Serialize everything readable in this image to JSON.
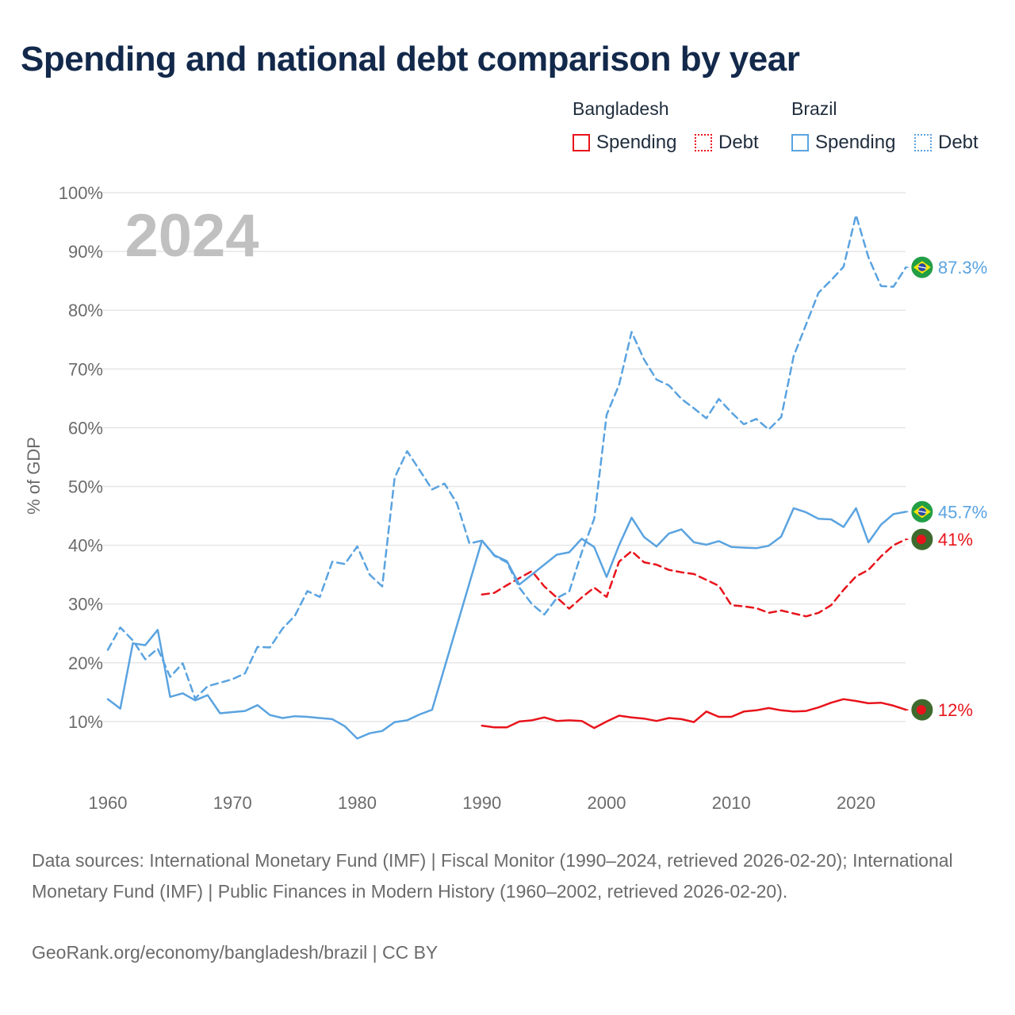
{
  "title": "Spending and national debt comparison by year",
  "year_label": "2024",
  "legend": {
    "groups": [
      {
        "name": "Bangladesh",
        "items": [
          {
            "label": "Spending",
            "color": "#e8141c",
            "style": "solid"
          },
          {
            "label": "Debt",
            "color": "#e8141c",
            "style": "dotted"
          }
        ]
      },
      {
        "name": "Brazil",
        "items": [
          {
            "label": "Spending",
            "color": "#5aa3e0",
            "style": "solid"
          },
          {
            "label": "Debt",
            "color": "#5aa3e0",
            "style": "dotted"
          }
        ]
      }
    ]
  },
  "end_labels": [
    {
      "text": "87.3%",
      "value": 87.3,
      "color": "#5aa3e0",
      "flag": "brazil-flag-icon"
    },
    {
      "text": "45.7%",
      "value": 45.7,
      "color": "#5aa3e0",
      "flag": "brazil-flag-icon"
    },
    {
      "text": "41%",
      "value": 41,
      "color": "#e8141c",
      "flag": "bangladesh-flag-icon"
    },
    {
      "text": "12%",
      "value": 12,
      "color": "#e8141c",
      "flag": "bangladesh-flag-icon"
    }
  ],
  "chart_data": {
    "type": "line",
    "title": "Spending and national debt comparison by year",
    "xlabel": "",
    "ylabel": "% of GDP",
    "xlim": [
      1960,
      2025.5
    ],
    "ylim": [
      0,
      100
    ],
    "x_ticks": [
      "1960",
      "1970",
      "1980",
      "1990",
      "2000",
      "2010",
      "2020"
    ],
    "x_tick_values": [
      1960,
      1970,
      1980,
      1990,
      2000,
      2010,
      2020
    ],
    "y_ticks": [
      "10%",
      "20%",
      "30%",
      "40%",
      "50%",
      "60%",
      "70%",
      "80%",
      "90%",
      "100%"
    ],
    "y_tick_values": [
      10,
      20,
      30,
      40,
      50,
      60,
      70,
      80,
      90,
      100
    ],
    "grid": true,
    "series": [
      {
        "name": "Bangladesh Spending",
        "color": "#e8141c",
        "dash": "solid",
        "x": [
          1990,
          1991,
          1992,
          1993,
          1994,
          1995,
          1996,
          1997,
          1998,
          1999,
          2000,
          2001,
          2002,
          2003,
          2004,
          2005,
          2006,
          2007,
          2008,
          2009,
          2010,
          2011,
          2012,
          2013,
          2014,
          2015,
          2016,
          2017,
          2018,
          2019,
          2020,
          2021,
          2022,
          2023,
          2024
        ],
        "values": [
          9.3,
          9,
          9,
          10,
          10.2,
          10.7,
          10.1,
          10.2,
          10.1,
          8.9,
          10,
          11,
          10.7,
          10.5,
          10.1,
          10.6,
          10.4,
          9.9,
          11.7,
          10.8,
          10.8,
          11.7,
          11.9,
          12.3,
          11.9,
          11.7,
          11.8,
          12.4,
          13.2,
          13.8,
          13.5,
          13.1,
          13.2,
          12.7,
          12
        ]
      },
      {
        "name": "Bangladesh Debt",
        "color": "#e8141c",
        "dash": "dashed",
        "x": [
          1990,
          1991,
          1992,
          1993,
          1994,
          1995,
          1996,
          1997,
          1998,
          1999,
          2000,
          2001,
          2002,
          2003,
          2004,
          2005,
          2006,
          2007,
          2008,
          2009,
          2010,
          2011,
          2012,
          2013,
          2014,
          2015,
          2016,
          2017,
          2018,
          2019,
          2020,
          2021,
          2022,
          2023,
          2024
        ],
        "values": [
          31.6,
          31.9,
          33.2,
          34.4,
          35.6,
          33,
          31.1,
          29.2,
          31.1,
          32.8,
          31.2,
          37.2,
          39,
          37.1,
          36.7,
          35.8,
          35.4,
          35.1,
          34.1,
          33.1,
          29.8,
          29.6,
          29.3,
          28.5,
          28.9,
          28.4,
          27.9,
          28.5,
          29.8,
          32.4,
          34.7,
          35.8,
          38.1,
          40,
          41
        ]
      },
      {
        "name": "Brazil Spending",
        "color": "#5aa3e0",
        "dash": "solid",
        "x": [
          1960,
          1961,
          1962,
          1963,
          1964,
          1965,
          1966,
          1967,
          1968,
          1969,
          1970,
          1971,
          1972,
          1973,
          1974,
          1975,
          1976,
          1977,
          1978,
          1979,
          1980,
          1981,
          1982,
          1983,
          1984,
          1985,
          1986,
          1987,
          1988,
          1989,
          1990,
          1991,
          1992,
          1993,
          1994,
          1995,
          1996,
          1997,
          1998,
          1999,
          2000,
          2001,
          2002,
          2003,
          2004,
          2005,
          2006,
          2007,
          2008,
          2009,
          2010,
          2011,
          2012,
          2013,
          2014,
          2015,
          2016,
          2017,
          2018,
          2019,
          2020,
          2021,
          2022,
          2023,
          2024
        ],
        "values": [
          13.8,
          12.2,
          23.3,
          23,
          25.6,
          14.2,
          14.8,
          13.6,
          14.5,
          11.4,
          11.6,
          11.8,
          12.8,
          11.1,
          10.6,
          10.9,
          10.8,
          10.6,
          10.4,
          9.2,
          7.1,
          8,
          8.4,
          9.9,
          10.2,
          11.2,
          12,
          null,
          null,
          null,
          40.8,
          38.3,
          37.3,
          33.3,
          null,
          null,
          38.4,
          38.8,
          41.1,
          39.7,
          34.6,
          40,
          44.7,
          41.4,
          39.8,
          42,
          42.7,
          40.5,
          40.1,
          40.7,
          39.7,
          39.6,
          39.5,
          39.9,
          41.5,
          46.3,
          45.6,
          44.5,
          44.4,
          43.1,
          46.3,
          40.5,
          43.5,
          45.3,
          45.7
        ]
      },
      {
        "name": "Brazil Debt",
        "color": "#5aa3e0",
        "dash": "dashed",
        "x": [
          1960,
          1961,
          1962,
          1963,
          1964,
          1965,
          1966,
          1967,
          1968,
          1969,
          1970,
          1971,
          1972,
          1973,
          1974,
          1975,
          1976,
          1977,
          1978,
          1979,
          1980,
          1981,
          1982,
          1983,
          1984,
          1985,
          1986,
          1987,
          1988,
          1989,
          1990,
          1991,
          1992,
          1993,
          1994,
          1995,
          1996,
          1997,
          1998,
          1999,
          2000,
          2001,
          2002,
          2003,
          2004,
          2005,
          2006,
          2007,
          2008,
          2009,
          2010,
          2011,
          2012,
          2013,
          2014,
          2015,
          2016,
          2017,
          2018,
          2019,
          2020,
          2021,
          2022,
          2023,
          2024
        ],
        "values": [
          22.2,
          26,
          23.8,
          20.6,
          22.4,
          17.6,
          19.9,
          13.9,
          16,
          16.6,
          17.2,
          18.2,
          22.7,
          22.6,
          25.8,
          28,
          32.2,
          31.2,
          37.2,
          36.8,
          39.8,
          35,
          33,
          51.5,
          56,
          52.8,
          49.5,
          50.5,
          47.1,
          40.3,
          40.8,
          38.2,
          37.1,
          32.8,
          30,
          28.2,
          31,
          32.1,
          38.8,
          44.5,
          62.2,
          67.3,
          76.3,
          71.6,
          68.2,
          67.2,
          64.9,
          63.3,
          61.6,
          64.9,
          62.6,
          60.6,
          61.5,
          59.7,
          61.8,
          72.2,
          77.6,
          83,
          85.1,
          87.4,
          96.2,
          89,
          84.1,
          84,
          87.3
        ]
      }
    ]
  },
  "footer": {
    "sources": "Data sources: International Monetary Fund (IMF) | Fiscal Monitor (1990–2024, retrieved 2026-02-20); International Monetary Fund (IMF) | Public Finances in Modern History (1960–2002, retrieved 2026-02-20).",
    "credit": "GeoRank.org/economy/bangladesh/brazil | CC BY"
  }
}
